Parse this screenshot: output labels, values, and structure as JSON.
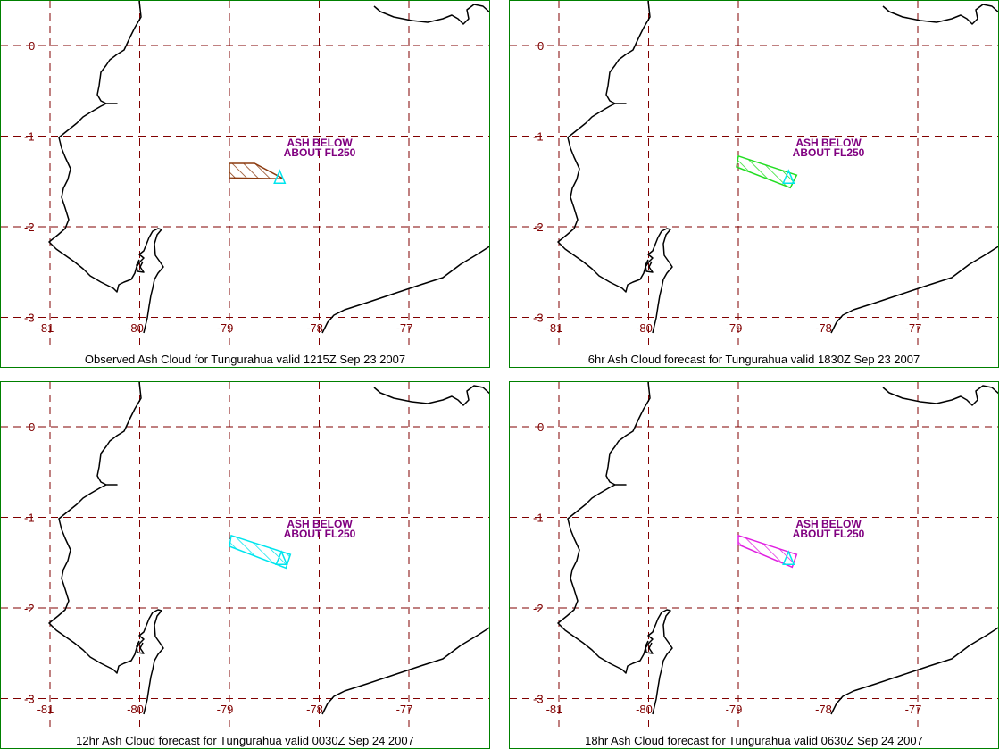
{
  "colors": {
    "grid": "#800000",
    "frame": "#008000",
    "coast": "#000000",
    "annotation": "#800080",
    "vent": "#00e5ee"
  },
  "map": {
    "lon_ticks": [
      "-81",
      "-80",
      "-79",
      "-78",
      "-77"
    ],
    "lat_ticks": [
      "0",
      "-1",
      "-2",
      "-3"
    ],
    "lon_values": [
      -81,
      -80,
      -79,
      -78,
      -77
    ],
    "lat_values": [
      0,
      -1,
      -2,
      -3
    ],
    "lon_range": [
      -81.1,
      -75.9
    ],
    "lat_range": [
      -3.25,
      0.45
    ],
    "vent_icon": "volcano-triangle-icon"
  },
  "panels": [
    {
      "caption": "Observed Ash Cloud for Tungurahua valid 1215Z Sep 23 2007",
      "annotation_line1": "ASH BELOW",
      "annotation_line2": "ABOUT FL250",
      "cloud_color": "#8b3a0f",
      "cloud_polygon": [
        [
          -79.0,
          -1.3
        ],
        [
          -78.72,
          -1.3
        ],
        [
          -78.4,
          -1.47
        ],
        [
          -79.0,
          -1.46
        ]
      ],
      "vent": [
        -78.44,
        -1.47
      ]
    },
    {
      "caption": "6hr Ash Cloud forecast for Tungurahua valid 1830Z Sep 23 2007",
      "annotation_line1": "ASH BELOW",
      "annotation_line2": "ABOUT FL250",
      "cloud_color": "#22dd22",
      "cloud_polygon": [
        [
          -79.0,
          -1.22
        ],
        [
          -78.35,
          -1.43
        ],
        [
          -78.42,
          -1.57
        ],
        [
          -79.02,
          -1.34
        ]
      ],
      "vent": [
        -78.44,
        -1.47
      ]
    },
    {
      "caption": "12hr Ash Cloud forecast for Tungurahua valid 0030Z Sep 24 2007",
      "annotation_line1": "ASH BELOW",
      "annotation_line2": "ABOUT FL250",
      "cloud_color": "#00e5ee",
      "cloud_polygon": [
        [
          -78.98,
          -1.2
        ],
        [
          -78.32,
          -1.41
        ],
        [
          -78.37,
          -1.56
        ],
        [
          -79.0,
          -1.32
        ]
      ],
      "vent": [
        -78.42,
        -1.47
      ]
    },
    {
      "caption": "18hr Ash Cloud forecast for Tungurahua valid 0630Z Sep 24 2007",
      "annotation_line1": "ASH BELOW",
      "annotation_line2": "ABOUT FL250",
      "cloud_color": "#e020e0",
      "cloud_polygon": [
        [
          -79.0,
          -1.2
        ],
        [
          -78.35,
          -1.41
        ],
        [
          -78.4,
          -1.55
        ],
        [
          -79.0,
          -1.3
        ]
      ],
      "vent": [
        -78.44,
        -1.47
      ]
    }
  ]
}
